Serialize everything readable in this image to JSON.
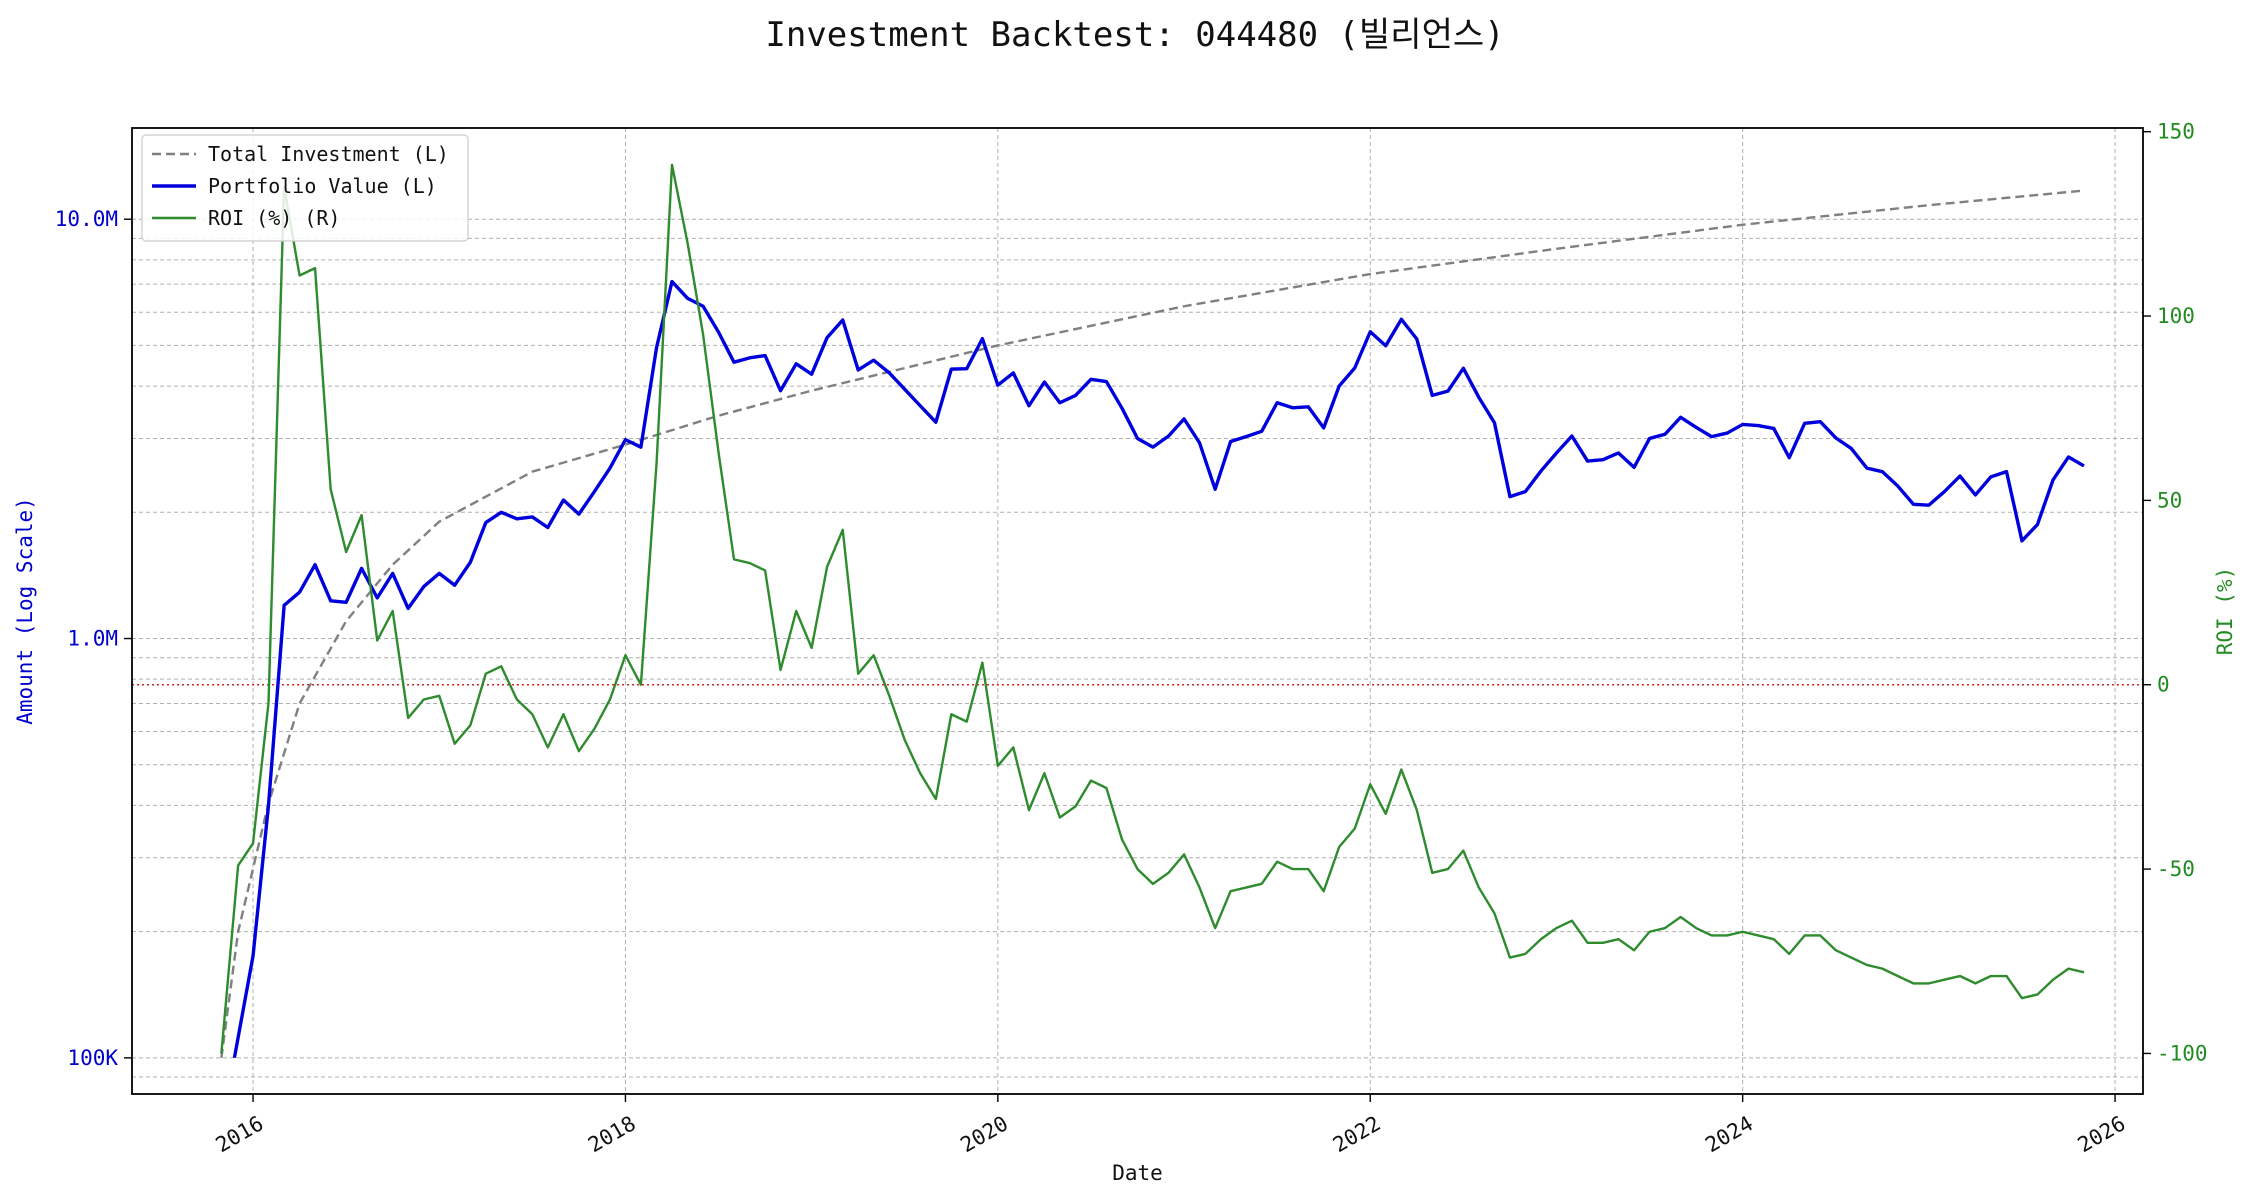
{
  "chart_data": {
    "type": "line",
    "title": "Investment Backtest: 044480 (빌리언스)",
    "xlabel": "Date",
    "ylabel_left": "Amount (Log Scale)",
    "ylabel_right": "ROI (%)",
    "left_axis": {
      "scale": "log",
      "range": [
        82000,
        16500000
      ],
      "ticks": [
        {
          "value": 100000,
          "label": "100K"
        },
        {
          "value": 1000000,
          "label": "1.0M"
        },
        {
          "value": 10000000,
          "label": "10.0M"
        }
      ],
      "color": "#0000cc"
    },
    "right_axis": {
      "scale": "linear",
      "range": [
        -111,
        151
      ],
      "ticks": [
        {
          "value": 150,
          "label": "150"
        },
        {
          "value": 100,
          "label": "100"
        },
        {
          "value": 50,
          "label": "50"
        },
        {
          "value": 0,
          "label": "0"
        },
        {
          "value": -50,
          "label": "-50"
        },
        {
          "value": -100,
          "label": "-100"
        }
      ],
      "color": "#228b22"
    },
    "x_axis": {
      "range": [
        2015.35,
        2026.15
      ],
      "ticks": [
        {
          "value": 2016,
          "label": "2016"
        },
        {
          "value": 2018,
          "label": "2018"
        },
        {
          "value": 2020,
          "label": "2020"
        },
        {
          "value": 2022,
          "label": "2022"
        },
        {
          "value": 2024,
          "label": "2024"
        },
        {
          "value": 2026,
          "label": "2026"
        }
      ]
    },
    "grid": true,
    "legend_position": "top-left",
    "zero_line": {
      "axis": "right",
      "value": 0,
      "color": "#d62728",
      "style": "dotted"
    },
    "series": [
      {
        "name": "Total Investment (L)",
        "axis": "left",
        "color": "#808080",
        "style": "dashed",
        "x": [
          2015.83,
          2015.92,
          2016.08,
          2016.25,
          2016.5,
          2016.75,
          2017.0,
          2017.5,
          2018.0,
          2018.5,
          2019.0,
          2020.0,
          2021.0,
          2022.0,
          2023.0,
          2024.0,
          2025.0,
          2025.83
        ],
        "values": [
          100000,
          200000,
          400000,
          700000,
          1100000,
          1500000,
          1900000,
          2500000,
          2900000,
          3400000,
          3900000,
          5000000,
          6200000,
          7400000,
          8500000,
          9700000,
          10800000,
          11700000
        ]
      },
      {
        "name": "Portfolio Value (L)",
        "axis": "left",
        "color": "#0000dd",
        "style": "solid",
        "x": [
          2015.9,
          2016.0,
          2016.083,
          2016.167,
          2016.25,
          2016.333,
          2016.417,
          2016.5,
          2016.583,
          2016.667,
          2016.75,
          2016.833,
          2016.917,
          2017.0,
          2017.083,
          2017.167,
          2017.25,
          2017.333,
          2017.417,
          2017.5,
          2017.583,
          2017.667,
          2017.75,
          2017.833,
          2017.917,
          2018.0,
          2018.083,
          2018.167,
          2018.25,
          2018.333,
          2018.417,
          2018.5,
          2018.583,
          2018.667,
          2018.75,
          2018.833,
          2018.917,
          2019.0,
          2019.083,
          2019.167,
          2019.25,
          2019.333,
          2019.417,
          2019.5,
          2019.583,
          2019.667,
          2019.75,
          2019.833,
          2019.917,
          2020.0,
          2020.083,
          2020.167,
          2020.25,
          2020.333,
          2020.417,
          2020.5,
          2020.583,
          2020.667,
          2020.75,
          2020.833,
          2020.917,
          2021.0,
          2021.083,
          2021.167,
          2021.25,
          2021.333,
          2021.417,
          2021.5,
          2021.583,
          2021.667,
          2021.75,
          2021.833,
          2021.917,
          2022.0,
          2022.083,
          2022.167,
          2022.25,
          2022.333,
          2022.417,
          2022.5,
          2022.583,
          2022.667,
          2022.75,
          2022.833,
          2022.917,
          2023.0,
          2023.083,
          2023.167,
          2023.25,
          2023.333,
          2023.417,
          2023.5,
          2023.583,
          2023.667,
          2023.75,
          2023.833,
          2023.917,
          2024.0,
          2024.083,
          2024.167,
          2024.25,
          2024.333,
          2024.417,
          2024.5,
          2024.583,
          2024.667,
          2024.75,
          2024.833,
          2024.917,
          2025.0,
          2025.083,
          2025.167,
          2025.25,
          2025.333,
          2025.417,
          2025.5,
          2025.583,
          2025.667,
          2025.75,
          2025.833
        ],
        "values": [
          100000,
          175000,
          400000,
          1200000,
          1290000,
          1500000,
          1230000,
          1220000,
          1470000,
          1250000,
          1430000,
          1180000,
          1330000,
          1430000,
          1340000,
          1520000,
          1890000,
          2000000,
          1930000,
          1950000,
          1840000,
          2140000,
          1980000,
          2240000,
          2550000,
          2980000,
          2860000,
          4940000,
          7100000,
          6480000,
          6200000,
          5380000,
          4560000,
          4670000,
          4730000,
          3900000,
          4520000,
          4270000,
          5220000,
          5750000,
          4370000,
          4610000,
          4300000,
          3930000,
          3590000,
          3280000,
          4390000,
          4400000,
          5190000,
          4020000,
          4300000,
          3590000,
          4090000,
          3650000,
          3800000,
          4150000,
          4100000,
          3540000,
          3000000,
          2860000,
          3040000,
          3340000,
          2930000,
          2270000,
          2950000,
          3030000,
          3120000,
          3650000,
          3550000,
          3570000,
          3180000,
          4000000,
          4420000,
          5390000,
          4990000,
          5770000,
          5180000,
          3800000,
          3890000,
          4410000,
          3760000,
          3270000,
          2180000,
          2240000,
          2510000,
          2770000,
          3040000,
          2650000,
          2670000,
          2770000,
          2560000,
          3000000,
          3070000,
          3370000,
          3190000,
          3030000,
          3090000,
          3240000,
          3220000,
          3170000,
          2700000,
          3260000,
          3290000,
          3010000,
          2840000,
          2550000,
          2500000,
          2310000,
          2090000,
          2080000,
          2240000,
          2440000,
          2200000,
          2430000,
          2500000,
          1710000,
          1870000,
          2390000,
          2710000,
          2580000
        ]
      },
      {
        "name": "ROI (%) (R)",
        "axis": "right",
        "color": "#2e8b2e",
        "style": "solid",
        "x": [
          2015.83,
          2015.92,
          2016.0,
          2016.083,
          2016.167,
          2016.25,
          2016.333,
          2016.417,
          2016.5,
          2016.583,
          2016.667,
          2016.75,
          2016.833,
          2016.917,
          2017.0,
          2017.083,
          2017.167,
          2017.25,
          2017.333,
          2017.417,
          2017.5,
          2017.583,
          2017.667,
          2017.75,
          2017.833,
          2017.917,
          2018.0,
          2018.083,
          2018.167,
          2018.25,
          2018.333,
          2018.417,
          2018.5,
          2018.583,
          2018.667,
          2018.75,
          2018.833,
          2018.917,
          2019.0,
          2019.083,
          2019.167,
          2019.25,
          2019.333,
          2019.417,
          2019.5,
          2019.583,
          2019.667,
          2019.75,
          2019.833,
          2019.917,
          2020.0,
          2020.083,
          2020.167,
          2020.25,
          2020.333,
          2020.417,
          2020.5,
          2020.583,
          2020.667,
          2020.75,
          2020.833,
          2020.917,
          2021.0,
          2021.083,
          2021.167,
          2021.25,
          2021.333,
          2021.417,
          2021.5,
          2021.583,
          2021.667,
          2021.75,
          2021.833,
          2021.917,
          2022.0,
          2022.083,
          2022.167,
          2022.25,
          2022.333,
          2022.417,
          2022.5,
          2022.583,
          2022.667,
          2022.75,
          2022.833,
          2022.917,
          2023.0,
          2023.083,
          2023.167,
          2023.25,
          2023.333,
          2023.417,
          2023.5,
          2023.583,
          2023.667,
          2023.75,
          2023.833,
          2023.917,
          2024.0,
          2024.083,
          2024.167,
          2024.25,
          2024.333,
          2024.417,
          2024.5,
          2024.583,
          2024.667,
          2024.75,
          2024.833,
          2024.917,
          2025.0,
          2025.083,
          2025.167,
          2025.25,
          2025.333,
          2025.417,
          2025.5,
          2025.583,
          2025.667,
          2025.75,
          2025.833
        ],
        "values": [
          -100,
          -49,
          -43,
          -5,
          135,
          111,
          113,
          53,
          36,
          46,
          12,
          20,
          -9,
          -4,
          -3,
          -16,
          -11,
          3,
          5,
          -4,
          -8,
          -17,
          -8,
          -18,
          -12,
          -4,
          8,
          0,
          60,
          141,
          120,
          95,
          63,
          34,
          33,
          31,
          4,
          20,
          10,
          32,
          42,
          3,
          8,
          -3,
          -15,
          -24,
          -31,
          -8,
          -10,
          6,
          -22,
          -17,
          -34,
          -24,
          -36,
          -33,
          -26,
          -28,
          -42,
          -50,
          -54,
          -51,
          -46,
          -55,
          -66,
          -56,
          -55,
          -54,
          -48,
          -50,
          -50,
          -56,
          -44,
          -39,
          -27,
          -35,
          -23,
          -34,
          -51,
          -50,
          -45,
          -55,
          -62,
          -74,
          -73,
          -69,
          -66,
          -64,
          -70,
          -70,
          -69,
          -72,
          -67,
          -66,
          -63,
          -66,
          -68,
          -68,
          -67,
          -68,
          -69,
          -73,
          -68,
          -68,
          -72,
          -74,
          -76,
          -77,
          -79,
          -81,
          -81,
          -80,
          -79,
          -81,
          -79,
          -79,
          -85,
          -84,
          -80,
          -77,
          -78
        ]
      }
    ]
  }
}
